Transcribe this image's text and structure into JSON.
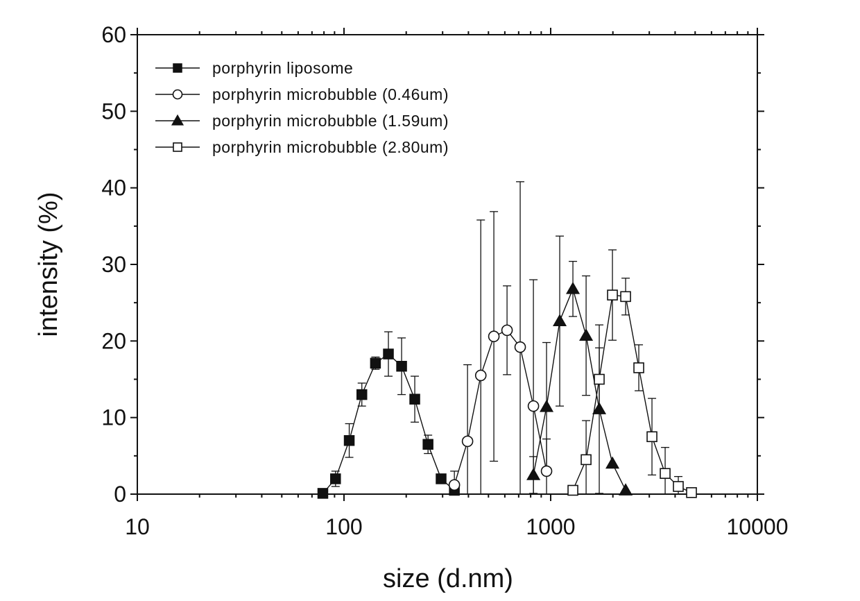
{
  "chart_data": {
    "type": "scatter",
    "title": "",
    "xlabel": "size (d.nm)",
    "ylabel": "intensity (%)",
    "x_scale": "log",
    "xlim": [
      10,
      10000
    ],
    "ylim": [
      0,
      60
    ],
    "x_ticks": [
      10,
      100,
      1000,
      10000
    ],
    "x_tick_labels": [
      "10",
      "100",
      "1000",
      "10000"
    ],
    "y_ticks": [
      0,
      10,
      20,
      30,
      40,
      50,
      60
    ],
    "y_tick_labels": [
      "0",
      "10",
      "20",
      "30",
      "40",
      "50",
      "60"
    ],
    "grid": false,
    "legend_position": "top-left",
    "series": [
      {
        "name": "porphyrin liposome",
        "marker": "filled-square",
        "x": [
          79,
          91,
          106,
          122,
          142,
          164,
          190,
          220,
          255,
          295,
          342
        ],
        "y": [
          0.1,
          2.0,
          7.0,
          13.0,
          17.1,
          18.3,
          16.7,
          12.4,
          6.5,
          2.0,
          0.5
        ],
        "err": [
          0,
          1.0,
          2.2,
          1.5,
          0.8,
          2.9,
          3.7,
          3.0,
          1.2,
          0,
          0
        ]
      },
      {
        "name": "porphyrin microbubble (0.46um)",
        "marker": "open-circle",
        "x": [
          342,
          396,
          459,
          531,
          615,
          712,
          825,
          955
        ],
        "y": [
          1.2,
          6.9,
          15.5,
          20.6,
          21.4,
          19.2,
          11.5,
          3.0
        ],
        "err": [
          1.8,
          10.0,
          20.3,
          16.3,
          5.8,
          21.6,
          16.5,
          4.2
        ]
      },
      {
        "name": "porphyrin microbubble (1.59um)",
        "marker": "filled-triangle",
        "x": [
          825,
          955,
          1106,
          1281,
          1484,
          1718,
          1990,
          2305
        ],
        "y": [
          2.5,
          11.4,
          22.6,
          26.8,
          20.7,
          11.1,
          4.0,
          0.5
        ],
        "err": [
          2.4,
          8.4,
          11.1,
          3.6,
          7.8,
          11.0,
          0,
          0
        ]
      },
      {
        "name": "porphyrin microbubble (2.80um)",
        "marker": "open-square",
        "x": [
          1281,
          1484,
          1718,
          1990,
          2305,
          2669,
          3091,
          3580,
          4145,
          4801
        ],
        "y": [
          0.5,
          4.5,
          15.0,
          26.0,
          25.8,
          16.5,
          7.5,
          2.7,
          1.0,
          0.2
        ],
        "err": [
          0,
          5.1,
          4.1,
          5.9,
          2.4,
          3.0,
          5.0,
          3.4,
          1.3,
          0
        ]
      }
    ]
  }
}
